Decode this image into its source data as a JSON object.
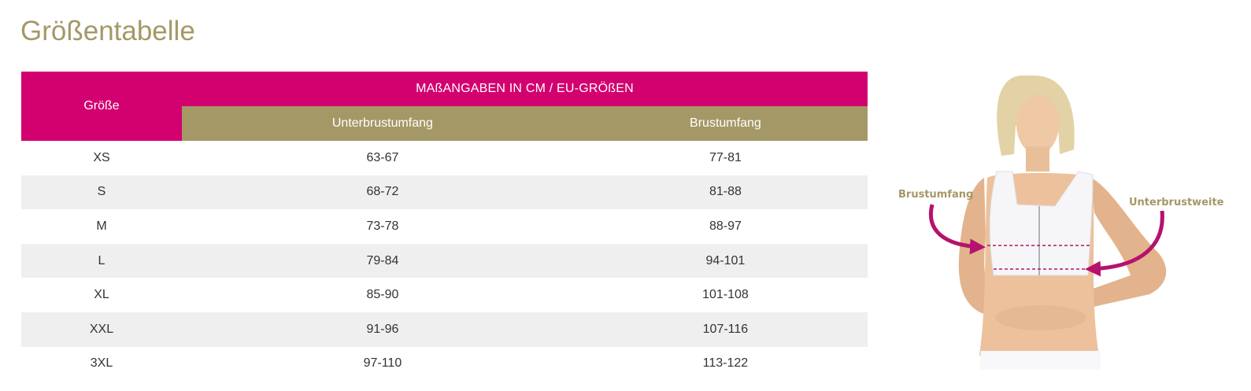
{
  "page": {
    "title": "Größentabelle"
  },
  "table": {
    "size_header": "Größe",
    "group_header": "MAßANGABEN IN CM / EU-GRÖßEN",
    "columns": [
      "Unterbrustumfang",
      "Brustumfang"
    ],
    "rows": [
      {
        "size": "XS",
        "underbust": "63-67",
        "bust": "77-81"
      },
      {
        "size": "S",
        "underbust": "68-72",
        "bust": "81-88"
      },
      {
        "size": "M",
        "underbust": "73-78",
        "bust": "88-97"
      },
      {
        "size": "L",
        "underbust": "79-84",
        "bust": "94-101"
      },
      {
        "size": "XL",
        "underbust": "85-90",
        "bust": "101-108"
      },
      {
        "size": "XXL",
        "underbust": "91-96",
        "bust": "107-116"
      },
      {
        "size": "3XL",
        "underbust": "97-110",
        "bust": "113-122"
      }
    ]
  },
  "illustration": {
    "label_left": "Brustumfang",
    "label_right": "Unterbrustweite"
  },
  "colors": {
    "accent_pink": "#d3006f",
    "accent_gold": "#a59867",
    "row_alt": "#efefef"
  }
}
